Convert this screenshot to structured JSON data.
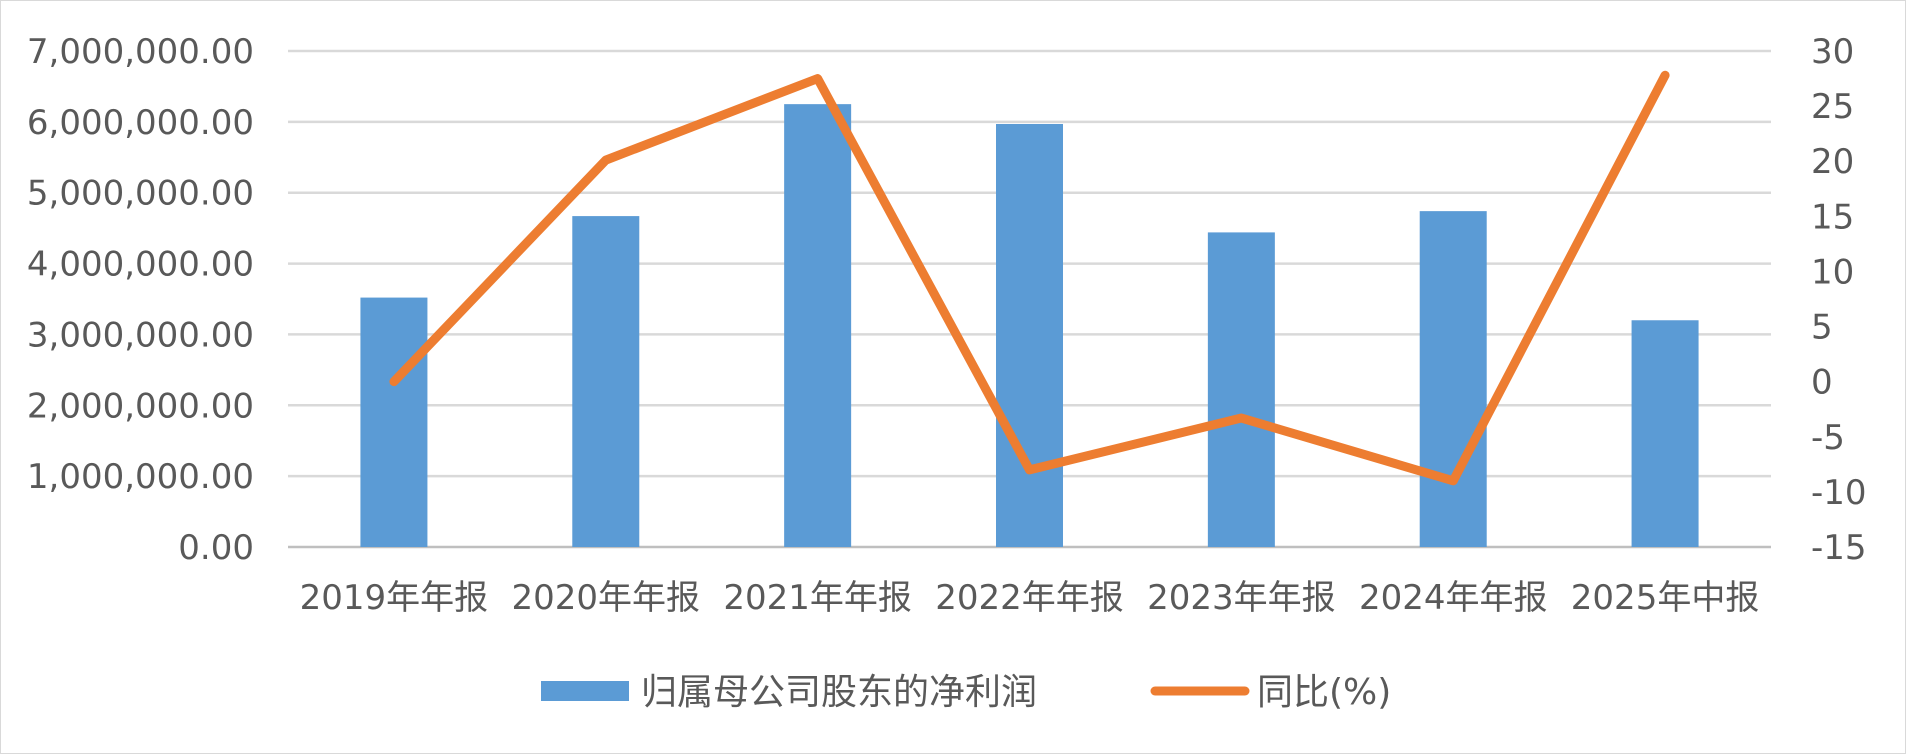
{
  "chart_data": {
    "type": "bar",
    "categories": [
      "2019年年报",
      "2020年年报",
      "2021年年报",
      "2022年年报",
      "2023年年报",
      "2024年年报",
      "2025年中报"
    ],
    "series": [
      {
        "name": "归属母公司股东的净利润",
        "type": "bar",
        "axis": "left",
        "color": "#5B9BD5",
        "values": [
          3520000,
          4670000,
          6250000,
          5970000,
          4440000,
          4740000,
          3200000
        ]
      },
      {
        "name": "同比(%)",
        "type": "line",
        "axis": "right",
        "color": "#ED7D31",
        "values": [
          0,
          20.1,
          27.5,
          -8.0,
          -3.3,
          -9.0,
          27.8
        ]
      }
    ],
    "left_axis": {
      "ylim": [
        0,
        7000000
      ],
      "ticks": [
        0,
        1000000,
        2000000,
        3000000,
        4000000,
        5000000,
        6000000,
        7000000
      ],
      "tick_labels": [
        "0.00",
        "1,000,000.00",
        "2,000,000.00",
        "3,000,000.00",
        "4,000,000.00",
        "5,000,000.00",
        "6,000,000.00",
        "7,000,000.00"
      ]
    },
    "right_axis": {
      "ylim": [
        -15,
        30
      ],
      "ticks": [
        -15,
        -10,
        -5,
        0,
        5,
        10,
        15,
        20,
        25,
        30
      ],
      "tick_labels": [
        "-15",
        "-10",
        "-5",
        "0",
        "5",
        "10",
        "15",
        "20",
        "25",
        "30"
      ]
    },
    "grid": true,
    "legend_position": "bottom",
    "gridline_color": "#d9d9d9",
    "axis_line_color": "#bfbfbf"
  }
}
